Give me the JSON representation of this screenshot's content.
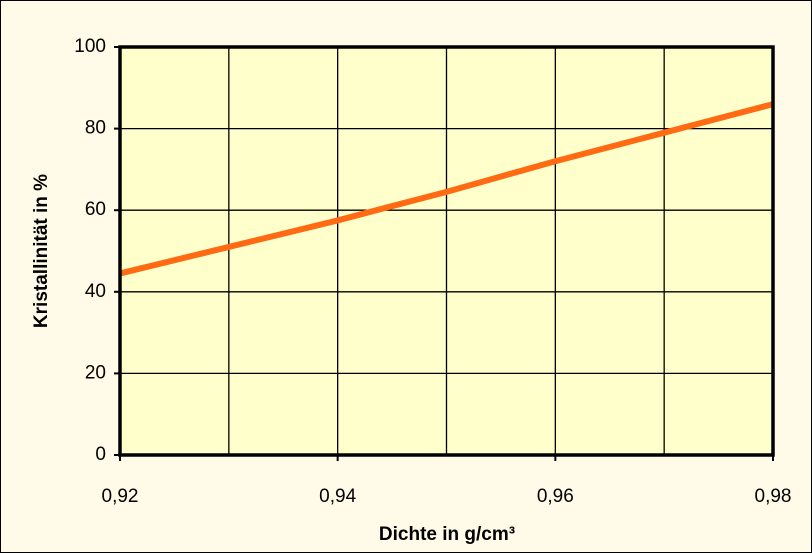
{
  "chart_data": {
    "type": "line",
    "xlabel": "Dichte in g/cm³",
    "ylabel": "Kristallinität in %",
    "x": [
      0.92,
      0.93,
      0.94,
      0.95,
      0.96,
      0.97,
      0.98
    ],
    "series": [
      {
        "name": "Kristallinität",
        "color": "#ff6a13",
        "values": [
          44.5,
          51,
          57.5,
          64.5,
          72,
          79,
          86
        ]
      }
    ],
    "xlim": [
      0.92,
      0.98
    ],
    "xticks": [
      {
        "value": 0.92,
        "label": "0,92"
      },
      {
        "value": 0.94,
        "label": "0,94"
      },
      {
        "value": 0.96,
        "label": "0,96"
      },
      {
        "value": 0.98,
        "label": "0,98"
      }
    ],
    "xminorticks": [
      0.93,
      0.95,
      0.97
    ],
    "ylim": [
      0,
      100
    ],
    "yticks": [
      0,
      20,
      40,
      60,
      80,
      100
    ],
    "grid": true,
    "legend": false
  }
}
